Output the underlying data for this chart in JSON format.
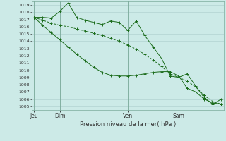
{
  "background_color": "#cceae7",
  "grid_color": "#aacccc",
  "line_color": "#1a6b1a",
  "ylabel_text": "Pression niveau de la mer( hPa )",
  "ylim": [
    1004.5,
    1019.5
  ],
  "yticks": [
    1005,
    1006,
    1007,
    1008,
    1009,
    1010,
    1011,
    1012,
    1013,
    1014,
    1015,
    1016,
    1017,
    1018,
    1019
  ],
  "xtick_labels": [
    "Jeu",
    "Dim",
    "Ven",
    "Sam"
  ],
  "xtick_positions": [
    0,
    3,
    11,
    17
  ],
  "total_points": 23,
  "series1": [
    1017.3,
    1017.3,
    1017.2,
    1018.1,
    1019.3,
    1017.3,
    1016.9,
    1016.6,
    1016.3,
    1016.8,
    1016.6,
    1015.5,
    1016.8,
    1014.8,
    1013.2,
    1011.6,
    1009.2,
    1009.0,
    1009.5,
    1007.8,
    1006.2,
    1005.3,
    1006.0
  ],
  "series2": [
    1017.3,
    1016.9,
    1016.5,
    1016.2,
    1016.0,
    1015.7,
    1015.4,
    1015.1,
    1014.8,
    1014.4,
    1014.0,
    1013.5,
    1012.9,
    1012.2,
    1011.4,
    1010.5,
    1009.5,
    1009.0,
    1008.5,
    1007.7,
    1006.5,
    1005.7,
    1005.3
  ],
  "series3": [
    1017.3,
    1016.2,
    1015.2,
    1014.2,
    1013.2,
    1012.2,
    1011.3,
    1010.4,
    1009.7,
    1009.3,
    1009.2,
    1009.2,
    1009.3,
    1009.5,
    1009.7,
    1009.8,
    1009.8,
    1009.2,
    1007.5,
    1007.0,
    1006.0,
    1005.5,
    1005.3
  ],
  "vline_positions": [
    0,
    3,
    11,
    17
  ],
  "figsize": [
    3.2,
    2.0
  ],
  "dpi": 100
}
